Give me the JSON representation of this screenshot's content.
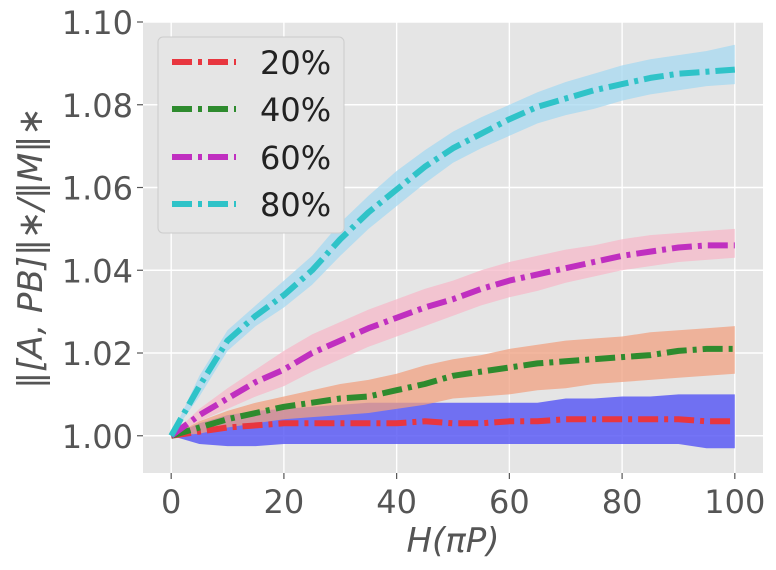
{
  "chart_data": {
    "type": "line",
    "title": "",
    "xlabel": "H(πP)",
    "ylabel": "‖[A, PB]‖∗/‖M‖∗",
    "xlim": [
      -5,
      105
    ],
    "ylim": [
      0.991,
      1.1
    ],
    "xticks": [
      0,
      20,
      40,
      60,
      80,
      100
    ],
    "xtick_labels": [
      "0",
      "20",
      "40",
      "60",
      "80",
      "100"
    ],
    "yticks": [
      1.0,
      1.02,
      1.04,
      1.06,
      1.08,
      1.1
    ],
    "ytick_labels": [
      "1.00",
      "1.02",
      "1.04",
      "1.06",
      "1.08",
      "1.10"
    ],
    "grid": true,
    "legend_position": "top-left",
    "line_style": "dash-dot",
    "x": [
      0,
      5,
      10,
      15,
      20,
      25,
      30,
      35,
      40,
      45,
      50,
      55,
      60,
      65,
      70,
      75,
      80,
      85,
      90,
      95,
      100
    ],
    "series": [
      {
        "name": "20%",
        "color": "#e8363f",
        "band_color": "#5c5cf5",
        "values": [
          1.0,
          1.001,
          1.002,
          1.0025,
          1.003,
          1.003,
          1.003,
          1.003,
          1.003,
          1.0035,
          1.003,
          1.003,
          1.0035,
          1.0035,
          1.004,
          1.004,
          1.004,
          1.004,
          1.004,
          1.0035,
          1.0035
        ],
        "lower": [
          1.0,
          0.998,
          0.9975,
          0.9975,
          0.998,
          0.998,
          0.998,
          0.998,
          0.998,
          0.998,
          0.998,
          0.998,
          0.998,
          0.998,
          0.998,
          0.998,
          0.998,
          0.998,
          0.998,
          0.997,
          0.997
        ],
        "upper": [
          1.0,
          1.003,
          1.005,
          1.006,
          1.0065,
          1.007,
          1.0075,
          1.008,
          1.008,
          1.008,
          1.008,
          1.008,
          1.008,
          1.008,
          1.009,
          1.009,
          1.0095,
          1.0095,
          1.01,
          1.01,
          1.01
        ]
      },
      {
        "name": "40%",
        "color": "#2e8b2e",
        "band_color": "#f0a080",
        "values": [
          1.0,
          1.002,
          1.004,
          1.0055,
          1.007,
          1.008,
          1.009,
          1.0095,
          1.011,
          1.0125,
          1.0145,
          1.0155,
          1.0165,
          1.0175,
          1.018,
          1.0185,
          1.019,
          1.0195,
          1.0205,
          1.021,
          1.021
        ],
        "lower": [
          1.0,
          1.0005,
          1.002,
          1.003,
          1.004,
          1.0045,
          1.005,
          1.0055,
          1.0065,
          1.0075,
          1.009,
          1.0095,
          1.01,
          1.011,
          1.0115,
          1.0125,
          1.013,
          1.0135,
          1.014,
          1.0145,
          1.015
        ],
        "upper": [
          1.0,
          1.0035,
          1.006,
          1.008,
          1.0095,
          1.011,
          1.0125,
          1.0135,
          1.015,
          1.017,
          1.0185,
          1.0195,
          1.021,
          1.022,
          1.023,
          1.0235,
          1.024,
          1.025,
          1.0255,
          1.026,
          1.0265
        ]
      },
      {
        "name": "60%",
        "color": "#c02fc0",
        "band_color": "#f5b8c8",
        "values": [
          1.0,
          1.005,
          1.009,
          1.013,
          1.016,
          1.02,
          1.023,
          1.026,
          1.0285,
          1.031,
          1.033,
          1.0355,
          1.0375,
          1.039,
          1.0405,
          1.042,
          1.0435,
          1.0445,
          1.0455,
          1.046,
          1.046
        ],
        "lower": [
          1.0,
          1.0035,
          1.0065,
          1.0095,
          1.012,
          1.0155,
          1.0185,
          1.0215,
          1.024,
          1.0265,
          1.029,
          1.0315,
          1.0335,
          1.035,
          1.037,
          1.0385,
          1.04,
          1.041,
          1.042,
          1.0425,
          1.043
        ],
        "upper": [
          1.0,
          1.0065,
          1.0115,
          1.016,
          1.0205,
          1.0245,
          1.0275,
          1.0305,
          1.033,
          1.0355,
          1.0375,
          1.04,
          1.042,
          1.0435,
          1.045,
          1.046,
          1.0475,
          1.0485,
          1.049,
          1.0495,
          1.05
        ]
      },
      {
        "name": "80%",
        "color": "#2fc3c8",
        "band_color": "#a6d8f0",
        "values": [
          1.0,
          1.012,
          1.023,
          1.029,
          1.034,
          1.04,
          1.0475,
          1.054,
          1.0595,
          1.065,
          1.0695,
          1.073,
          1.0765,
          1.0795,
          1.0815,
          1.0835,
          1.085,
          1.0865,
          1.0875,
          1.088,
          1.0885
        ],
        "lower": [
          1.0,
          1.0095,
          1.0205,
          1.0265,
          1.031,
          1.0365,
          1.0435,
          1.05,
          1.0555,
          1.061,
          1.066,
          1.0695,
          1.0725,
          1.0755,
          1.0775,
          1.079,
          1.081,
          1.0825,
          1.0835,
          1.0845,
          1.085
        ],
        "upper": [
          1.0,
          1.0145,
          1.0255,
          1.0315,
          1.0375,
          1.0435,
          1.0515,
          1.058,
          1.064,
          1.069,
          1.0735,
          1.077,
          1.08,
          1.083,
          1.0855,
          1.0875,
          1.0895,
          1.091,
          1.092,
          1.093,
          1.0945
        ]
      }
    ]
  }
}
